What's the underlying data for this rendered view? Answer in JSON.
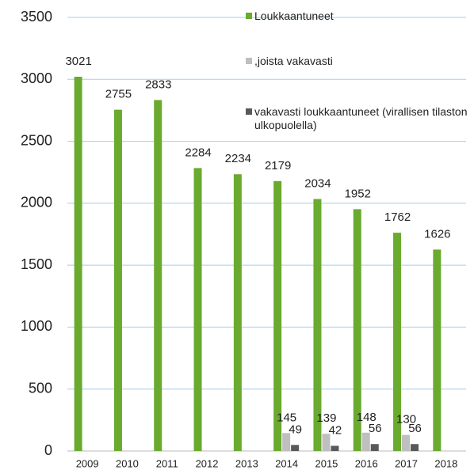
{
  "chart_data": {
    "type": "bar",
    "categories": [
      "2009",
      "2010",
      "2011",
      "2012",
      "2013",
      "2014",
      "2015",
      "2016",
      "2017",
      "2018"
    ],
    "series": [
      {
        "name": "Loukkaantuneet",
        "color": "#6aaa2e",
        "values": [
          3021,
          2755,
          2833,
          2284,
          2234,
          2179,
          2034,
          1952,
          1762,
          1626
        ]
      },
      {
        "name": ",joista vakavasti",
        "color": "#bfbfbf",
        "values": [
          null,
          null,
          null,
          null,
          null,
          145,
          139,
          148,
          130,
          null
        ]
      },
      {
        "name": "vakavasti loukkaantuneet (virallisen tilaston ulkopuolella)",
        "color": "#595959",
        "values": [
          null,
          null,
          null,
          null,
          null,
          49,
          42,
          56,
          56,
          null
        ]
      }
    ],
    "ylim": [
      0,
      3500
    ],
    "yticks": [
      0,
      500,
      1000,
      1500,
      2000,
      2500,
      3000,
      3500
    ],
    "grid": true,
    "legend": "top-right"
  }
}
